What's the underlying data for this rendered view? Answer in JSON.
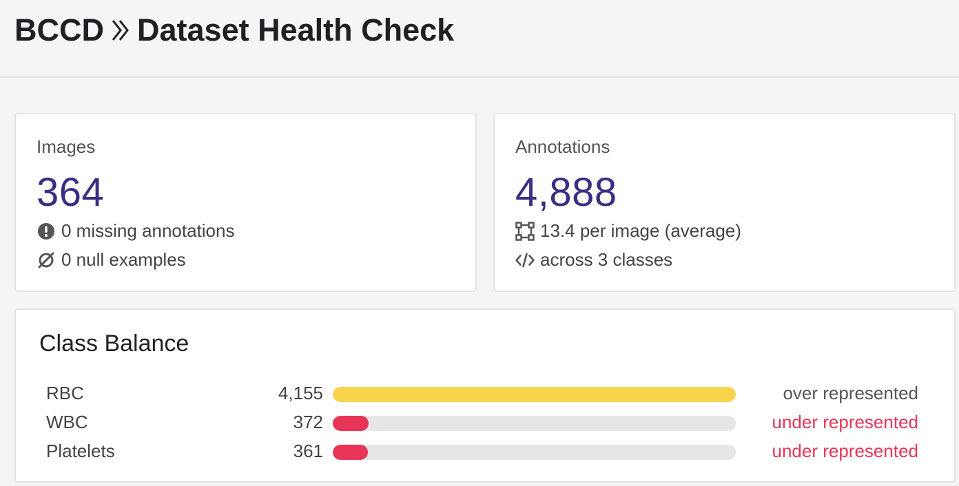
{
  "header": {
    "project": "BCCD",
    "page_title": "Dataset Health Check"
  },
  "images_card": {
    "label": "Images",
    "value": "364",
    "missing_annotations": "0 missing annotations",
    "null_examples": "0 null examples"
  },
  "annotations_card": {
    "label": "Annotations",
    "value": "4,888",
    "per_image": "13.4 per image (average)",
    "classes": "across 3 classes"
  },
  "class_balance": {
    "title": "Class Balance",
    "rows": [
      {
        "name": "RBC",
        "count": "4,155",
        "fill": 1.0,
        "status": "over represented",
        "bar_color": "#f7d44c",
        "status_color": "#555555"
      },
      {
        "name": "WBC",
        "count": "372",
        "fill": 0.089,
        "status": "under represented",
        "bar_color": "#e83557",
        "status_color": "#e83557"
      },
      {
        "name": "Platelets",
        "count": "361",
        "fill": 0.087,
        "status": "under represented",
        "bar_color": "#e83557",
        "status_color": "#e83557"
      }
    ]
  },
  "colors": {
    "accent_value": "#3a2d84",
    "over": "#f7d44c",
    "under": "#e83557"
  }
}
